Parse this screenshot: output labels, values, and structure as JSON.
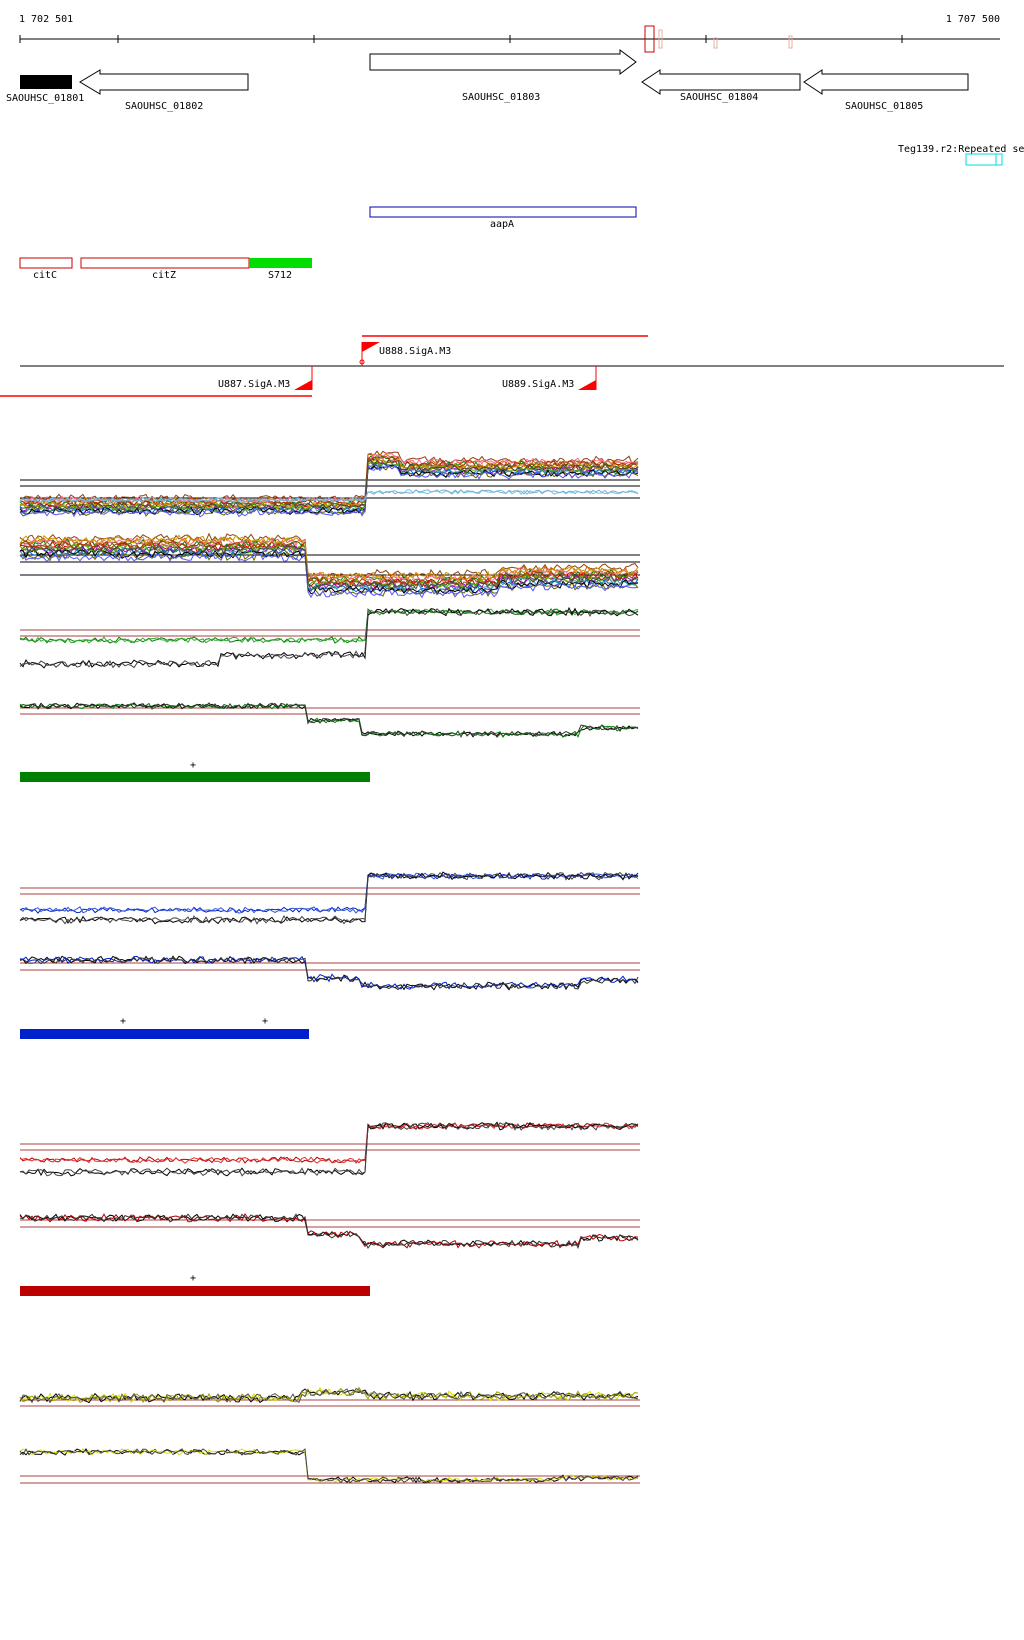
{
  "coordinates": {
    "start_label": "1 702 501",
    "end_label": "1 707 500",
    "start": 1702501,
    "end": 1707500
  },
  "colors": {
    "axis": "#000000",
    "feature_outline": "#cc0000",
    "aapA": "#0000aa",
    "S712": "#00dd00",
    "repeat": "#00dddd",
    "promoter": "#ff0000",
    "threshold": "#8b0000",
    "green_track": "#008000",
    "blue_track": "#0022cc",
    "red_track": "#bb0000",
    "yellow_track": "#dddd00"
  },
  "genes": [
    {
      "name": "SAOUHSC_01801",
      "strand": "+",
      "style": "filled"
    },
    {
      "name": "SAOUHSC_01802",
      "strand": "-",
      "style": "arrow"
    },
    {
      "name": "SAOUHSC_01803",
      "strand": "+",
      "style": "arrow"
    },
    {
      "name": "SAOUHSC_01804",
      "strand": "-",
      "style": "arrow"
    },
    {
      "name": "SAOUHSC_01805",
      "strand": "-",
      "style": "arrow"
    }
  ],
  "repeat": {
    "label": "Teg139.r2:Repeated se"
  },
  "features": {
    "aapA": "aapA",
    "citC": "citC",
    "citZ": "citZ",
    "S712": "S712"
  },
  "promoters": [
    {
      "label": "U888.SigA.M3",
      "strand": "+"
    },
    {
      "label": "U887.SigA.M3",
      "strand": "-"
    },
    {
      "label": "U889.SigA.M3",
      "strand": "-"
    }
  ],
  "segment_marks": {
    "green": [
      "+"
    ],
    "blue": [
      "+",
      "+"
    ],
    "red": [
      "+"
    ]
  }
}
